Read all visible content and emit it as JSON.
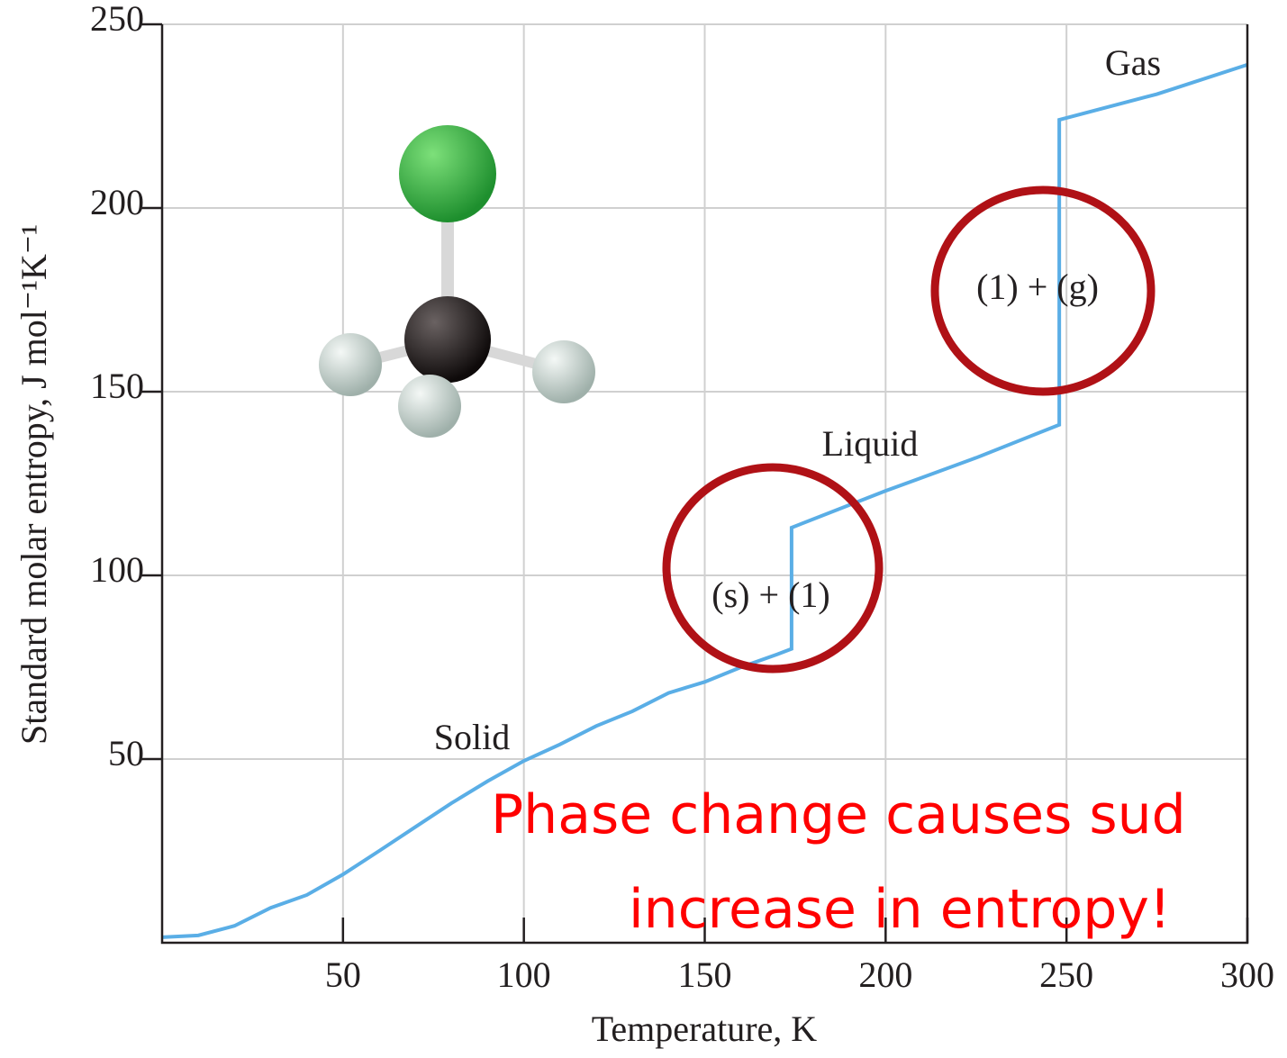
{
  "chart_data": {
    "type": "line",
    "x_label": "Temperature, K",
    "y_label": "Standard molar entropy, J mol⁻¹K⁻¹",
    "x": [
      0,
      10,
      20,
      30,
      40,
      50,
      60,
      70,
      80,
      90,
      100,
      110,
      120,
      130,
      140,
      150,
      160,
      170,
      174,
      174,
      200,
      225,
      248,
      248,
      275,
      300
    ],
    "values": [
      1.5,
      2,
      4.6,
      9.5,
      13,
      18.6,
      25,
      31.5,
      38,
      44,
      49.5,
      54,
      59,
      63,
      68,
      71,
      75,
      78.5,
      80,
      113,
      123,
      132,
      141,
      224,
      231,
      239
    ],
    "color": "#5aaee6",
    "xlim": [
      0,
      300
    ],
    "xticks": [
      50,
      100,
      150,
      200,
      250,
      300
    ],
    "ylim": [
      0,
      250
    ],
    "yticks": [
      50,
      100,
      150,
      200,
      250
    ],
    "grid": true,
    "annotations": [
      "Solid",
      "Liquid",
      "Gas",
      "(s) + (1)",
      "(1) + (g)"
    ],
    "note": [
      "Phase change causes sud",
      "increase in entropy!"
    ]
  }
}
